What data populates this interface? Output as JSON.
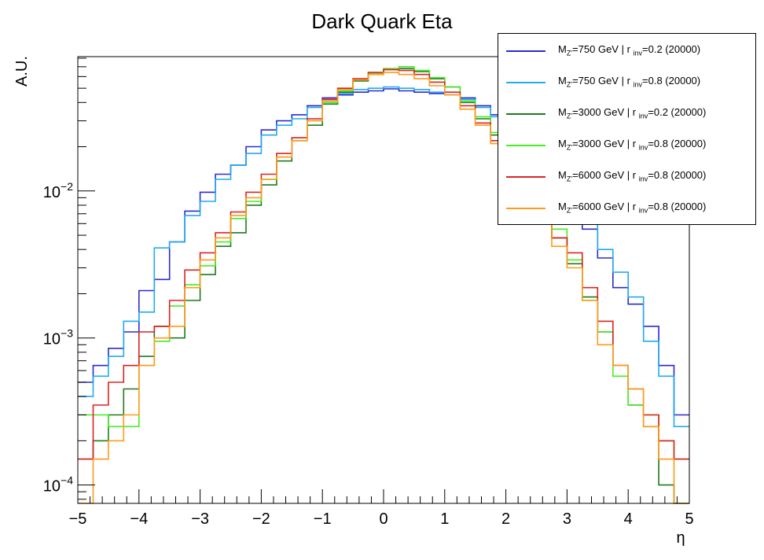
{
  "chart_data": {
    "type": "line",
    "title": "Dark Quark Eta",
    "xlabel": "η",
    "ylabel": "A.U.",
    "xlim": [
      -5,
      5
    ],
    "ylim": [
      7.5e-05,
      0.082
    ],
    "yscale": "log",
    "x_ticks": [
      "−5",
      "−4",
      "−3",
      "−2",
      "−1",
      "0",
      "1",
      "2",
      "3",
      "4",
      "5"
    ],
    "y_ticks": [
      "10",
      "10",
      "10"
    ],
    "y_tick_exponents": [
      "−2",
      "−3",
      "−4"
    ],
    "legend_position": "top-right",
    "bin_edges": [
      -5.0,
      -4.75,
      -4.5,
      -4.25,
      -4.0,
      -3.75,
      -3.5,
      -3.25,
      -3.0,
      -2.75,
      -2.5,
      -2.25,
      -2.0,
      -1.75,
      -1.5,
      -1.25,
      -1.0,
      -0.75,
      -0.5,
      -0.25,
      0.0,
      0.25,
      0.5,
      0.75,
      1.0,
      1.25,
      1.5,
      1.75,
      2.0,
      2.25,
      2.5,
      2.75,
      3.0,
      3.25,
      3.5,
      3.75,
      4.0,
      4.25,
      4.5,
      4.75,
      5.0
    ],
    "series": [
      {
        "legend_main": "M",
        "legend_sub1": "Z'",
        "legend_mid": "=750 GeV | r ",
        "legend_sub2": "inv",
        "legend_tail": "=0.2 (20000)",
        "color": "#2b2bcf",
        "values": [
          0.0005,
          0.00065,
          0.00085,
          0.0011,
          0.0021,
          0.0025,
          0.0045,
          0.0073,
          0.0098,
          0.013,
          0.015,
          0.02,
          0.026,
          0.03,
          0.033,
          0.038,
          0.043,
          0.045,
          0.047,
          0.048,
          0.0495,
          0.048,
          0.047,
          0.046,
          0.045,
          0.043,
          0.038,
          0.033,
          0.028,
          0.022,
          0.018,
          0.012,
          0.009,
          0.0055,
          0.0035,
          0.0022,
          0.0017,
          0.0012,
          0.00065,
          0.0003
        ]
      },
      {
        "legend_main": "M",
        "legend_sub1": "Z'",
        "legend_mid": "=750 GeV | r ",
        "legend_sub2": "inv",
        "legend_tail": "=0.8 (20000)",
        "color": "#22aaf0",
        "values": [
          0.0004,
          0.00055,
          0.00075,
          0.0013,
          0.0015,
          0.0041,
          0.0045,
          0.0068,
          0.0085,
          0.012,
          0.015,
          0.018,
          0.024,
          0.028,
          0.031,
          0.037,
          0.042,
          0.046,
          0.049,
          0.05,
          0.051,
          0.05,
          0.049,
          0.047,
          0.045,
          0.042,
          0.037,
          0.032,
          0.027,
          0.022,
          0.017,
          0.013,
          0.0095,
          0.006,
          0.004,
          0.0028,
          0.0019,
          0.00095,
          0.00055,
          0.00025
        ]
      },
      {
        "legend_main": "M",
        "legend_sub1": "Z'",
        "legend_mid": "=3000 GeV | r ",
        "legend_sub2": "inv",
        "legend_tail": "=0.2 (20000)",
        "color": "#1f7a1f",
        "values": [
          0.00015,
          0.0002,
          0.0003,
          0.00045,
          0.00075,
          0.0012,
          0.001,
          0.0018,
          0.0027,
          0.0042,
          0.0052,
          0.008,
          0.011,
          0.016,
          0.022,
          0.028,
          0.039,
          0.047,
          0.056,
          0.062,
          0.067,
          0.068,
          0.065,
          0.058,
          0.051,
          0.04,
          0.031,
          0.024,
          0.018,
          0.012,
          0.0075,
          0.0048,
          0.0032,
          0.0019,
          0.0011,
          0.00065,
          0.00035,
          0.00025,
          0.0001,
          7.5e-05
        ]
      },
      {
        "legend_main": "M",
        "legend_sub1": "Z'",
        "legend_mid": "=3000 GeV | r ",
        "legend_sub2": "inv",
        "legend_tail": "=0.8 (20000)",
        "color": "#44ee22",
        "values": [
          0.0003,
          0.0003,
          0.00025,
          0.00025,
          0.00065,
          0.00095,
          0.00165,
          0.0023,
          0.0031,
          0.0045,
          0.0065,
          0.0085,
          0.012,
          0.017,
          0.023,
          0.03,
          0.04,
          0.048,
          0.057,
          0.063,
          0.068,
          0.07,
          0.066,
          0.059,
          0.051,
          0.041,
          0.032,
          0.025,
          0.018,
          0.013,
          0.0085,
          0.0055,
          0.0034,
          0.0018,
          0.0011,
          0.00055,
          0.00035,
          0.0003,
          0.0002,
          0.00015
        ]
      },
      {
        "legend_main": "M",
        "legend_sub1": "Z'",
        "legend_mid": "=6000 GeV | r ",
        "legend_sub2": "inv",
        "legend_tail": "=0.8 (20000)",
        "color": "#dd2222",
        "values": [
          0.00015,
          0.00035,
          0.0005,
          0.00065,
          0.0011,
          0.0012,
          0.0018,
          0.0029,
          0.0038,
          0.0052,
          0.0072,
          0.0098,
          0.013,
          0.018,
          0.023,
          0.031,
          0.042,
          0.05,
          0.058,
          0.064,
          0.067,
          0.066,
          0.062,
          0.055,
          0.047,
          0.038,
          0.029,
          0.022,
          0.016,
          0.011,
          0.0072,
          0.0048,
          0.0038,
          0.0022,
          0.0013,
          0.00065,
          0.00045,
          0.0003,
          0.0002,
          0.00015
        ]
      },
      {
        "legend_main": "M",
        "legend_sub1": "Z'",
        "legend_mid": "=6000 GeV | r ",
        "legend_sub2": "inv",
        "legend_tail": "=0.8 (20000)",
        "color": "#ff9a1a",
        "values": [
          7.5e-05,
          0.00015,
          0.0002,
          0.0003,
          0.00065,
          0.001,
          0.0012,
          0.0022,
          0.0034,
          0.0048,
          0.0068,
          0.009,
          0.012,
          0.017,
          0.022,
          0.03,
          0.041,
          0.049,
          0.057,
          0.062,
          0.064,
          0.062,
          0.058,
          0.052,
          0.045,
          0.036,
          0.028,
          0.021,
          0.015,
          0.01,
          0.0068,
          0.0042,
          0.003,
          0.0018,
          0.0009,
          0.00065,
          0.00045,
          0.00025,
          0.00015,
          7.5e-05
        ]
      }
    ]
  }
}
